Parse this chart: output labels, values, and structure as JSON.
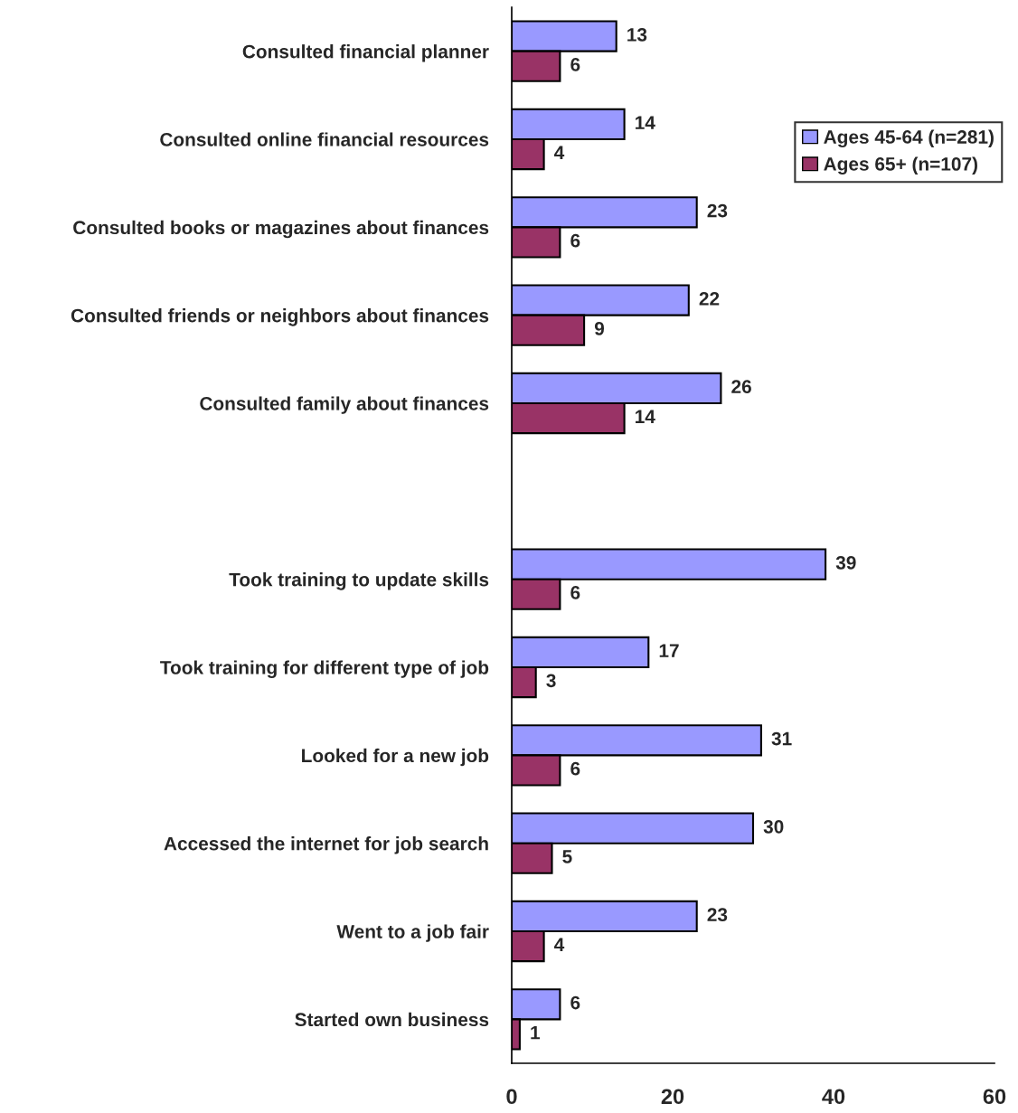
{
  "chart_data": {
    "type": "bar",
    "orientation": "horizontal",
    "categories": [
      "Consulted financial planner",
      "Consulted online financial resources",
      "Consulted books or magazines about finances",
      "Consulted friends or neighbors about finances",
      "Consulted family about finances",
      null,
      "Took training to update skills",
      "Took training for different type of job",
      "Looked for a new job",
      "Accessed the internet for job search",
      "Went to a job fair",
      "Started own business"
    ],
    "series": [
      {
        "name": "Ages 45-64 (n=281)",
        "color": "#9999ff",
        "values": [
          13,
          14,
          23,
          22,
          26,
          null,
          39,
          17,
          31,
          30,
          23,
          6
        ]
      },
      {
        "name": "Ages 65+ (n=107)",
        "color": "#993366",
        "values": [
          6,
          4,
          6,
          9,
          14,
          null,
          6,
          3,
          6,
          5,
          4,
          1
        ]
      }
    ],
    "xlim": [
      0,
      60
    ],
    "xticks": [
      0,
      20,
      40,
      60
    ],
    "data_labels": true,
    "legend": "top right",
    "grid": false
  }
}
